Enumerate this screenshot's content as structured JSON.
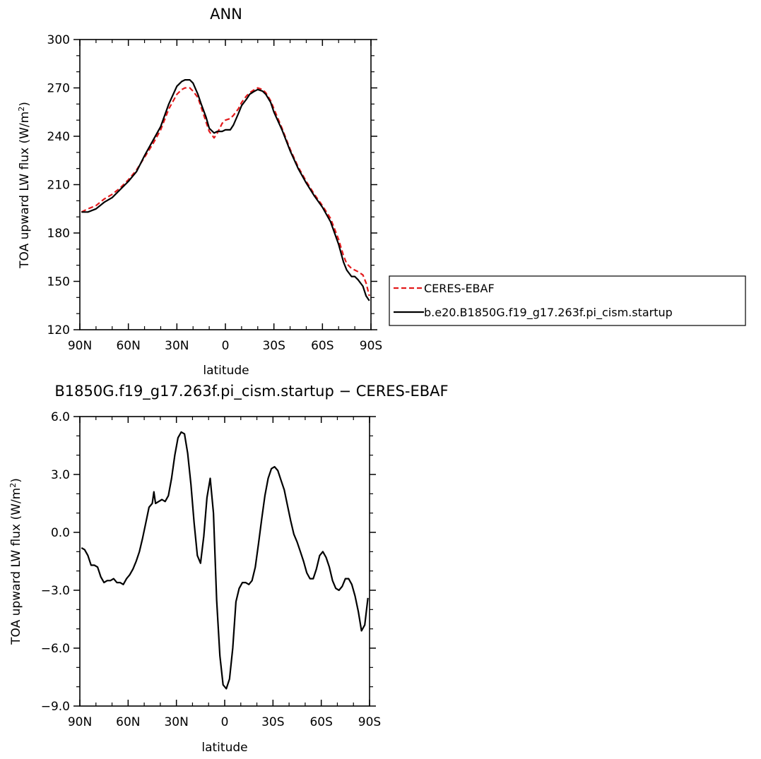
{
  "chart_data": [
    {
      "type": "line",
      "title": "ANN",
      "xlabel": "latitude",
      "ylabel": "TOA upward LW flux (W/m²)",
      "ylabel_main": "TOA upward LW flux (W/m",
      "ylabel_sup": "2",
      "ylabel_close": ")",
      "xlim": [
        90,
        -90
      ],
      "ylim": [
        120,
        300
      ],
      "xticks": [
        90,
        60,
        30,
        0,
        -30,
        -60,
        -90
      ],
      "xtick_labels": [
        "90N",
        "60N",
        "30N",
        "0",
        "30S",
        "60S",
        "90S"
      ],
      "yticks": [
        120,
        150,
        180,
        210,
        240,
        270,
        300
      ],
      "ytick_labels": [
        "120",
        "150",
        "180",
        "210",
        "240",
        "270",
        "300"
      ],
      "legend_position": "right",
      "legend": [
        {
          "label": "CERES-EBAF",
          "color": "#e31a1c",
          "dash": "dashed"
        },
        {
          "label": "b.e20.B1850G.f19_g17.263f.pi_cism.startup",
          "color": "#000000",
          "dash": "solid"
        }
      ],
      "series": [
        {
          "name": "CERES-EBAF",
          "color": "#e31a1c",
          "dash": "dashed",
          "x": [
            89,
            85,
            80,
            75,
            70,
            65,
            60,
            55,
            50,
            45,
            40,
            35,
            30,
            27,
            25,
            22,
            20,
            17,
            15,
            12,
            10,
            7,
            5,
            2,
            0,
            -3,
            -5,
            -8,
            -10,
            -13,
            -15,
            -18,
            -20,
            -23,
            -25,
            -28,
            -30,
            -35,
            -40,
            -45,
            -50,
            -55,
            -60,
            -65,
            -70,
            -73,
            -75,
            -78,
            -80,
            -82,
            -85,
            -87,
            -89
          ],
          "values": [
            193,
            195,
            197,
            201,
            204,
            208,
            213,
            219,
            227,
            235,
            244,
            257,
            266,
            269,
            270,
            270,
            268,
            264,
            258,
            249,
            243,
            239,
            242,
            248,
            250,
            251,
            253,
            257,
            261,
            265,
            267,
            269,
            270,
            269,
            267,
            262,
            257,
            245,
            232,
            221,
            212,
            204,
            197,
            189,
            176,
            166,
            161,
            158,
            157,
            156,
            154,
            149,
            141
          ]
        },
        {
          "name": "b.e20.B1850G.f19_g17.263f.pi_cism.startup",
          "color": "#000000",
          "dash": "solid",
          "x": [
            89,
            85,
            80,
            75,
            70,
            65,
            60,
            55,
            50,
            45,
            40,
            35,
            30,
            27,
            25,
            22,
            20,
            17,
            15,
            12,
            10,
            7,
            5,
            2,
            0,
            -3,
            -5,
            -8,
            -10,
            -13,
            -15,
            -18,
            -20,
            -23,
            -25,
            -28,
            -30,
            -35,
            -40,
            -45,
            -50,
            -55,
            -60,
            -65,
            -70,
            -73,
            -75,
            -78,
            -80,
            -82,
            -85,
            -87,
            -89
          ],
          "values": [
            193,
            193,
            195,
            199,
            202,
            207,
            212,
            218,
            228,
            237,
            246,
            260,
            271,
            274,
            275,
            275,
            273,
            266,
            260,
            252,
            245,
            242,
            243,
            243,
            244,
            244,
            247,
            254,
            259,
            263,
            266,
            268,
            269,
            268,
            266,
            261,
            255,
            244,
            231,
            220,
            211,
            203,
            196,
            187,
            173,
            162,
            157,
            153,
            153,
            151,
            147,
            141,
            138
          ]
        }
      ]
    },
    {
      "type": "line",
      "title": "B1850G.f19_g17.263f.pi_cism.startup − CERES-EBAF",
      "xlabel": "latitude",
      "ylabel": "TOA upward LW flux (W/m²)",
      "ylabel_main": "TOA upward LW flux (W/m",
      "ylabel_sup": "2",
      "ylabel_close": ")",
      "xlim": [
        90,
        -90
      ],
      "ylim": [
        -9.0,
        6.0
      ],
      "xticks": [
        90,
        60,
        30,
        0,
        -30,
        -60,
        -90
      ],
      "xtick_labels": [
        "90N",
        "60N",
        "30N",
        "0",
        "30S",
        "60S",
        "90S"
      ],
      "yticks": [
        -9.0,
        -6.0,
        -3.0,
        0.0,
        3.0,
        6.0
      ],
      "ytick_labels": [
        "−9.0",
        "−6.0",
        "−3.0",
        "0.0",
        "3.0",
        "6.0"
      ],
      "series": [
        {
          "color": "#000000",
          "dash": "solid",
          "x": [
            89,
            87,
            85,
            83,
            81,
            79,
            77,
            75,
            73,
            71,
            69,
            67,
            65,
            63,
            61,
            59,
            57,
            55,
            53,
            51,
            49,
            47,
            45,
            44,
            43,
            41,
            39,
            37,
            35,
            33,
            31,
            29,
            27,
            25,
            23,
            21,
            19,
            17,
            15,
            13,
            11,
            9,
            7,
            5,
            3,
            1,
            -1,
            -3,
            -5,
            -7,
            -9,
            -11,
            -13,
            -15,
            -17,
            -19,
            -21,
            -23,
            -25,
            -27,
            -29,
            -31,
            -33,
            -35,
            -37,
            -39,
            -41,
            -43,
            -45,
            -47,
            -49,
            -51,
            -53,
            -55,
            -57,
            -59,
            -61,
            -63,
            -65,
            -67,
            -69,
            -71,
            -73,
            -75,
            -77,
            -79,
            -81,
            -83,
            -85,
            -87,
            -89
          ],
          "values": [
            -0.8,
            -0.9,
            -1.2,
            -1.7,
            -1.7,
            -1.8,
            -2.3,
            -2.6,
            -2.5,
            -2.5,
            -2.4,
            -2.6,
            -2.6,
            -2.7,
            -2.4,
            -2.2,
            -1.9,
            -1.5,
            -1.0,
            -0.3,
            0.5,
            1.3,
            1.5,
            2.1,
            1.5,
            1.6,
            1.7,
            1.6,
            1.9,
            2.8,
            4.0,
            4.9,
            5.2,
            5.1,
            4.1,
            2.5,
            0.5,
            -1.2,
            -1.6,
            -0.2,
            1.8,
            2.8,
            1.0,
            -3.5,
            -6.4,
            -7.9,
            -8.1,
            -7.6,
            -6.0,
            -3.6,
            -2.9,
            -2.6,
            -2.6,
            -2.7,
            -2.5,
            -1.8,
            -0.6,
            0.7,
            1.9,
            2.8,
            3.3,
            3.4,
            3.2,
            2.7,
            2.2,
            1.4,
            0.6,
            -0.1,
            -0.5,
            -1.0,
            -1.5,
            -2.1,
            -2.4,
            -2.4,
            -1.9,
            -1.2,
            -1.0,
            -1.3,
            -1.8,
            -2.5,
            -2.9,
            -3.0,
            -2.8,
            -2.4,
            -2.4,
            -2.7,
            -3.3,
            -4.1,
            -5.1,
            -4.8,
            -3.4
          ]
        }
      ]
    }
  ]
}
